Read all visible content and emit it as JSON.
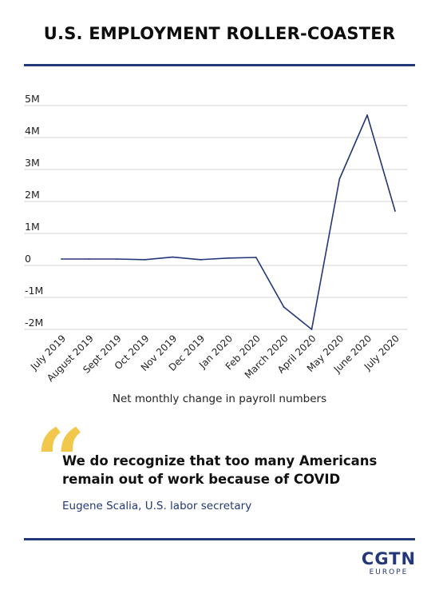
{
  "colors": {
    "navy": "#233779",
    "grid": "#d4d4d4",
    "quote_mark": "#f1c84b"
  },
  "header": {
    "title": "U.S. EMPLOYMENT ROLLER-COASTER"
  },
  "chart_data": {
    "type": "line",
    "title": "U.S. EMPLOYMENT ROLLER-COASTER",
    "xlabel": "Net monthly change in payroll numbers",
    "ylabel": "",
    "categories": [
      "July 2019",
      "August 2019",
      "Sept 2019",
      "Oct 2019",
      "Nov 2019",
      "Dec 2019",
      "Jan 2020",
      "Feb 2020",
      "March 2020",
      "April 2020",
      "May 2020",
      "June 2020",
      "July 2020"
    ],
    "y_tick_values": [
      -2,
      -1,
      0,
      1,
      2,
      3,
      4,
      5
    ],
    "y_tick_labels": [
      "-2M",
      "-1M",
      "0",
      "1M",
      "2M",
      "3M",
      "4M",
      "5M"
    ],
    "ylim": [
      -2,
      5
    ],
    "grid": true,
    "series": [
      {
        "values": [
          0.2,
          0.2,
          0.2,
          0.18,
          0.26,
          0.18,
          0.23,
          0.25,
          -1.3,
          -2.0,
          2.7,
          4.7,
          1.7
        ]
      }
    ]
  },
  "quote": {
    "mark": "“",
    "text": "We do recognize that too many Americans remain out of work because of COVID",
    "source": "Eugene Scalia, U.S. labor secretary"
  },
  "logo": {
    "main": "CGTN",
    "sub": "EUROPE"
  }
}
